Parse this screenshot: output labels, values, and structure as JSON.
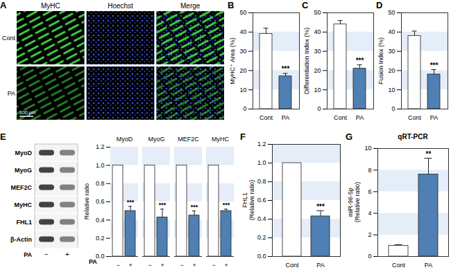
{
  "chart_data": [
    {
      "type": "image",
      "panel": "A",
      "columns": [
        "MyHC",
        "Hoechst",
        "Merge"
      ],
      "rows": [
        "Cont",
        "PA"
      ],
      "scale_bar": "100 μm"
    },
    {
      "type": "bar",
      "panel": "B",
      "ylabel": "MyHC⁺ Area (%)",
      "categories": [
        "Cont",
        "PA"
      ],
      "values": [
        39,
        17
      ],
      "errors": [
        3,
        1.5
      ],
      "significance": [
        null,
        "***"
      ],
      "colors": [
        "#ffffff",
        "#4f7fb3"
      ],
      "ylim": [
        0,
        50
      ],
      "yticks": [
        0,
        10,
        20,
        30,
        40,
        50
      ],
      "grid": true
    },
    {
      "type": "bar",
      "panel": "C",
      "ylabel": "Differentiation Index (%)",
      "categories": [
        "Cont",
        "PA"
      ],
      "values": [
        44,
        21
      ],
      "errors": [
        2,
        2
      ],
      "significance": [
        null,
        "***"
      ],
      "colors": [
        "#ffffff",
        "#4f7fb3"
      ],
      "ylim": [
        0,
        50
      ],
      "yticks": [
        0,
        10,
        20,
        30,
        40,
        50
      ],
      "grid": true
    },
    {
      "type": "bar",
      "panel": "D",
      "ylabel": "Fusion Index (%)",
      "categories": [
        "Cont",
        "PA"
      ],
      "values": [
        38,
        18
      ],
      "errors": [
        2.5,
        2.5
      ],
      "significance": [
        null,
        "***"
      ],
      "colors": [
        "#ffffff",
        "#4f7fb3"
      ],
      "ylim": [
        0,
        50
      ],
      "yticks": [
        0,
        10,
        20,
        30,
        40,
        50
      ],
      "grid": true
    },
    {
      "type": "blot",
      "panel": "E",
      "bands": [
        "MyoD",
        "MyoG",
        "MEF2C",
        "MyHC",
        "FHL1",
        "β-Actin"
      ],
      "lanes": [
        "−",
        "+"
      ],
      "lane_title": "PA"
    },
    {
      "type": "bar",
      "ylabel": "Relative ratio",
      "xlabel": "PA",
      "categories": [
        "MyoD",
        "MyoG",
        "MEF2C",
        "MyHC"
      ],
      "series": [
        {
          "name": "−",
          "color": "#ffffff",
          "values": [
            1.0,
            1.0,
            1.0,
            1.0
          ]
        },
        {
          "name": "+",
          "color": "#4f7fb3",
          "values": [
            0.5,
            0.43,
            0.45,
            0.5
          ],
          "errors": [
            0.05,
            0.09,
            0.05,
            0.02
          ],
          "significance": [
            "***",
            "***",
            "***",
            "***"
          ]
        }
      ],
      "ylim": [
        0,
        1.2
      ],
      "yticks": [
        {
          "value": 0,
          "label": "0.0"
        },
        0.2,
        0.4,
        0.6,
        0.8,
        {
          "value": 1,
          "label": "1.0"
        },
        1.2
      ],
      "grid": true
    },
    {
      "type": "bar",
      "panel": "F",
      "ylabel": "FHL1\n(Relative ratio)",
      "categories": [
        "Cont",
        "PA"
      ],
      "values": [
        1.0,
        0.43
      ],
      "errors": [
        null,
        0.06
      ],
      "significance": [
        null,
        "***"
      ],
      "colors": [
        "#ffffff",
        "#4f7fb3"
      ],
      "ylim": [
        0,
        1.2
      ],
      "yticks": [
        {
          "value": 0,
          "label": "0.0"
        },
        0.2,
        0.4,
        0.6,
        0.8,
        {
          "value": 1,
          "label": "1.0"
        },
        1.2
      ],
      "grid": true
    },
    {
      "type": "bar",
      "panel": "G",
      "title": "qRT-PCR",
      "ylabel": "miR-96-5p\n(Relative ratio)",
      "categories": [
        "Cont",
        "PA"
      ],
      "values": [
        1.0,
        7.6
      ],
      "errors": [
        0.1,
        1.5
      ],
      "significance": [
        null,
        "**"
      ],
      "colors": [
        "#ffffff",
        "#4f7fb3"
      ],
      "ylim": [
        0,
        10
      ],
      "yticks": [
        0,
        2,
        4,
        6,
        8,
        10
      ],
      "grid": true
    }
  ]
}
